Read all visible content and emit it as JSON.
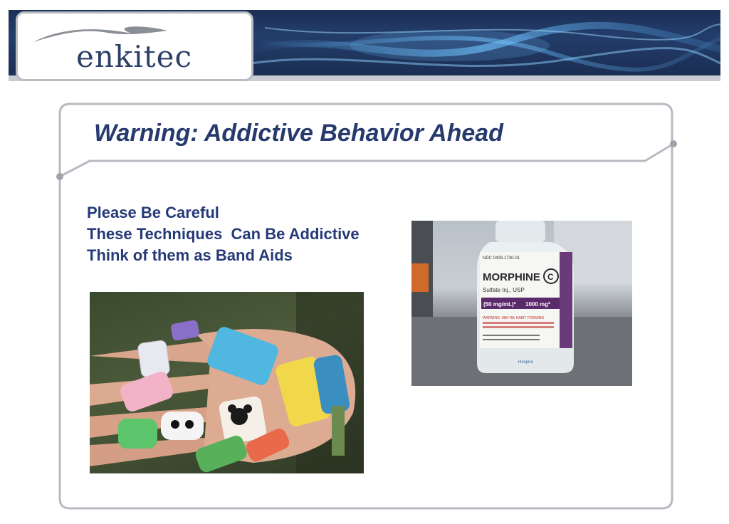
{
  "header": {
    "logo_text": "enkitec"
  },
  "slide": {
    "title": "Warning: Addictive Behavior Ahead",
    "bullets": [
      "Please Be Careful",
      "These Techniques  Can Be Addictive",
      "Think of them as Band Aids"
    ]
  },
  "images": {
    "bottle_label": {
      "ndc": "NDC 0409-1730-01",
      "brand": "MORPHINE",
      "schedule": "C",
      "subtitle": "Sulfate Inj., USP",
      "concentration": "(50 mg/mL)*",
      "total": "1000 mg*",
      "warning": "WARNING: MAY BE HABIT FORMING",
      "maker": "Hospira"
    }
  },
  "colors": {
    "title": "#273a6e",
    "bullets": "#263a78",
    "banner": "#1b2f55",
    "frame": "#b7bbc1"
  }
}
